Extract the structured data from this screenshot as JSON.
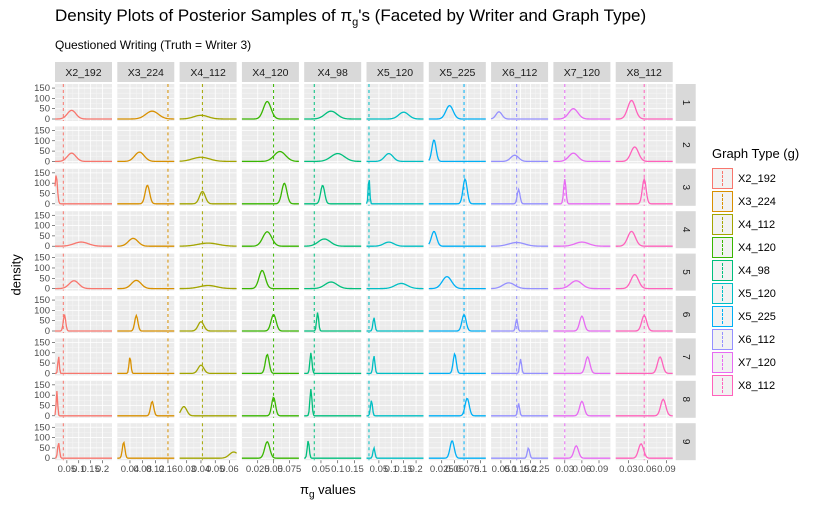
{
  "chart_data": {
    "type": "density",
    "title": "Density Plots of Posterior Samples of π_g's (Faceted by Writer and Graph Type)",
    "subtitle": "Questioned Writing (Truth = Writer 3)",
    "xlabel": "π_g values",
    "ylabel": "density",
    "legend_title": "Graph Type (g)",
    "legend_position": "right",
    "y_ticks": [
      0,
      50,
      100,
      150
    ],
    "ylim": [
      0,
      160
    ],
    "x_tick_labels": "0.05 0.10 0.150.20 0.04 0.08 0.12 0.160.03 0.04 0.05 0.060.025 0.050 0.075 0.05 0.10 0.15 0.05 0.10 0.150.20 0.025 0.050 0.075 0.100.05 0.10 0.15 0.20 0.25 0.03 0.06 0.09 0.03 0.06 0.09",
    "columns": [
      {
        "name": "X2_192",
        "xlim": [
          0.0,
          0.24
        ],
        "ticks": [
          0.05,
          0.1,
          0.15,
          0.2
        ],
        "color": "#F8766D",
        "vline": 0.035
      },
      {
        "name": "X3_224",
        "xlim": [
          0.0,
          0.18
        ],
        "ticks": [
          0.04,
          0.08,
          0.12,
          0.16
        ],
        "color": "#D89000",
        "vline": 0.16
      },
      {
        "name": "X4_112",
        "xlim": [
          0.025,
          0.065
        ],
        "ticks": [
          0.03,
          0.04,
          0.05,
          0.06
        ],
        "color": "#A3A500",
        "vline": 0.041
      },
      {
        "name": "X4_120",
        "xlim": [
          0.0,
          0.09
        ],
        "ticks": [
          0.025,
          0.05,
          0.075
        ],
        "color": "#39B600",
        "vline": 0.05
      },
      {
        "name": "X4_98",
        "xlim": [
          0.0,
          0.17
        ],
        "ticks": [
          0.05,
          0.1,
          0.15
        ],
        "color": "#00BF7D",
        "vline": 0.03
      },
      {
        "name": "X5_120",
        "xlim": [
          0.0,
          0.23
        ],
        "ticks": [
          0.05,
          0.1,
          0.15,
          0.2
        ],
        "color": "#00BFC4",
        "vline": 0.01
      },
      {
        "name": "X5_225",
        "xlim": [
          0.0,
          0.11
        ],
        "ticks": [
          0.025,
          0.05,
          0.075,
          0.1
        ],
        "color": "#00B0F6",
        "vline": 0.068
      },
      {
        "name": "X6_112",
        "xlim": [
          0.0,
          0.29
        ],
        "ticks": [
          0.05,
          0.1,
          0.15,
          0.2,
          0.25
        ],
        "color": "#9590FF",
        "vline": 0.13
      },
      {
        "name": "X7_120",
        "xlim": [
          0.01,
          0.11
        ],
        "ticks": [
          0.03,
          0.06,
          0.09
        ],
        "color": "#E76BF3",
        "vline": 0.03
      },
      {
        "name": "X8_112",
        "xlim": [
          0.01,
          0.1
        ],
        "ticks": [
          0.03,
          0.06,
          0.09
        ],
        "color": "#FF62BC",
        "vline": 0.055
      }
    ],
    "rows": [
      "1",
      "2",
      "3",
      "4",
      "5",
      "6",
      "7",
      "8",
      "9"
    ],
    "peaks": [
      [
        [
          0.07,
          0.018,
          42
        ],
        [
          0.11,
          0.02,
          38
        ],
        [
          0.04,
          0.005,
          18
        ],
        [
          0.04,
          0.006,
          85
        ],
        [
          0.08,
          0.018,
          38
        ],
        [
          0.15,
          0.02,
          33
        ],
        [
          0.04,
          0.007,
          65
        ],
        [
          0.04,
          0.015,
          35
        ],
        [
          0.045,
          0.008,
          50
        ],
        [
          0.035,
          0.006,
          90
        ]
      ],
      [
        [
          0.07,
          0.018,
          40
        ],
        [
          0.07,
          0.015,
          45
        ],
        [
          0.04,
          0.006,
          20
        ],
        [
          0.06,
          0.009,
          48
        ],
        [
          0.1,
          0.02,
          38
        ],
        [
          0.09,
          0.017,
          38
        ],
        [
          0.01,
          0.004,
          105
        ],
        [
          0.12,
          0.02,
          30
        ],
        [
          0.045,
          0.008,
          40
        ],
        [
          0.04,
          0.006,
          70
        ]
      ],
      [
        [
          0.005,
          0.005,
          140
        ],
        [
          0.095,
          0.007,
          90
        ],
        [
          0.041,
          0.002,
          60
        ],
        [
          0.067,
          0.004,
          100
        ],
        [
          0.055,
          0.006,
          90
        ],
        [
          0.01,
          0.003,
          130
        ],
        [
          0.07,
          0.004,
          120
        ],
        [
          0.14,
          0.007,
          70
        ],
        [
          0.03,
          0.002,
          120
        ],
        [
          0.055,
          0.003,
          120
        ]
      ],
      [
        [
          0.11,
          0.03,
          20
        ],
        [
          0.05,
          0.015,
          38
        ],
        [
          0.045,
          0.007,
          15
        ],
        [
          0.04,
          0.007,
          70
        ],
        [
          0.06,
          0.018,
          35
        ],
        [
          0.09,
          0.02,
          20
        ],
        [
          0.01,
          0.005,
          72
        ],
        [
          0.13,
          0.04,
          18
        ],
        [
          0.06,
          0.012,
          20
        ],
        [
          0.035,
          0.006,
          72
        ]
      ],
      [
        [
          0.08,
          0.02,
          38
        ],
        [
          0.06,
          0.015,
          40
        ],
        [
          0.045,
          0.006,
          15
        ],
        [
          0.032,
          0.005,
          88
        ],
        [
          0.08,
          0.018,
          32
        ],
        [
          0.14,
          0.025,
          25
        ],
        [
          0.035,
          0.009,
          58
        ],
        [
          0.09,
          0.03,
          28
        ],
        [
          0.05,
          0.01,
          38
        ],
        [
          0.04,
          0.006,
          68
        ]
      ],
      [
        [
          0.04,
          0.005,
          80
        ],
        [
          0.06,
          0.005,
          75
        ],
        [
          0.04,
          0.002,
          45
        ],
        [
          0.05,
          0.004,
          80
        ],
        [
          0.04,
          0.003,
          90
        ],
        [
          0.03,
          0.004,
          65
        ],
        [
          0.068,
          0.004,
          80
        ],
        [
          0.13,
          0.005,
          60
        ],
        [
          0.06,
          0.004,
          72
        ],
        [
          0.055,
          0.004,
          75
        ]
      ],
      [
        [
          0.015,
          0.003,
          85
        ],
        [
          0.04,
          0.003,
          80
        ],
        [
          0.04,
          0.002,
          40
        ],
        [
          0.04,
          0.003,
          92
        ],
        [
          0.02,
          0.003,
          100
        ],
        [
          0.03,
          0.004,
          85
        ],
        [
          0.05,
          0.003,
          95
        ],
        [
          0.15,
          0.005,
          70
        ],
        [
          0.07,
          0.004,
          80
        ],
        [
          0.08,
          0.004,
          80
        ]
      ],
      [
        [
          0.008,
          0.003,
          120
        ],
        [
          0.11,
          0.005,
          70
        ],
        [
          0.028,
          0.002,
          45
        ],
        [
          0.05,
          0.003,
          90
        ],
        [
          0.02,
          0.003,
          130
        ],
        [
          0.02,
          0.004,
          75
        ],
        [
          0.074,
          0.004,
          85
        ],
        [
          0.14,
          0.005,
          60
        ],
        [
          0.06,
          0.004,
          70
        ],
        [
          0.085,
          0.004,
          80
        ]
      ],
      [
        [
          0.015,
          0.004,
          75
        ],
        [
          0.02,
          0.004,
          78
        ],
        [
          0.063,
          0.003,
          30
        ],
        [
          0.04,
          0.004,
          80
        ],
        [
          0.012,
          0.003,
          85
        ],
        [
          0.03,
          0.004,
          50
        ],
        [
          0.045,
          0.004,
          85
        ],
        [
          0.19,
          0.006,
          50
        ],
        [
          0.05,
          0.004,
          60
        ],
        [
          0.05,
          0.004,
          70
        ]
      ]
    ]
  }
}
